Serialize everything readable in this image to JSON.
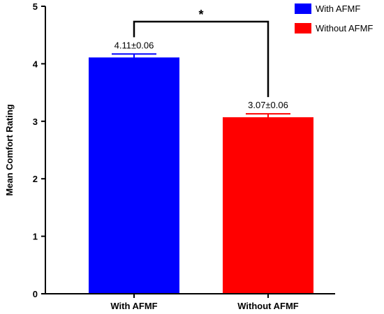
{
  "chart_data": {
    "type": "bar",
    "categories": [
      "With AFMF",
      "Without AFMF"
    ],
    "values": [
      4.11,
      3.07
    ],
    "errors": [
      0.06,
      0.06
    ],
    "data_labels": [
      "4.11±0.06",
      "3.07±0.06"
    ],
    "colors": [
      "#0000ff",
      "#ff0000"
    ],
    "ylabel": "Mean Comfort Rating",
    "ylim": [
      0,
      5
    ],
    "yticks": [
      "0",
      "1",
      "2",
      "3",
      "4",
      "5"
    ],
    "legend": {
      "placement": "top-right",
      "entries": [
        {
          "label": "With AFMF",
          "color": "#0000ff"
        },
        {
          "label": "Without AFMF",
          "color": "#ff0000"
        }
      ]
    },
    "annotation": {
      "text": "*"
    },
    "grid": false
  }
}
